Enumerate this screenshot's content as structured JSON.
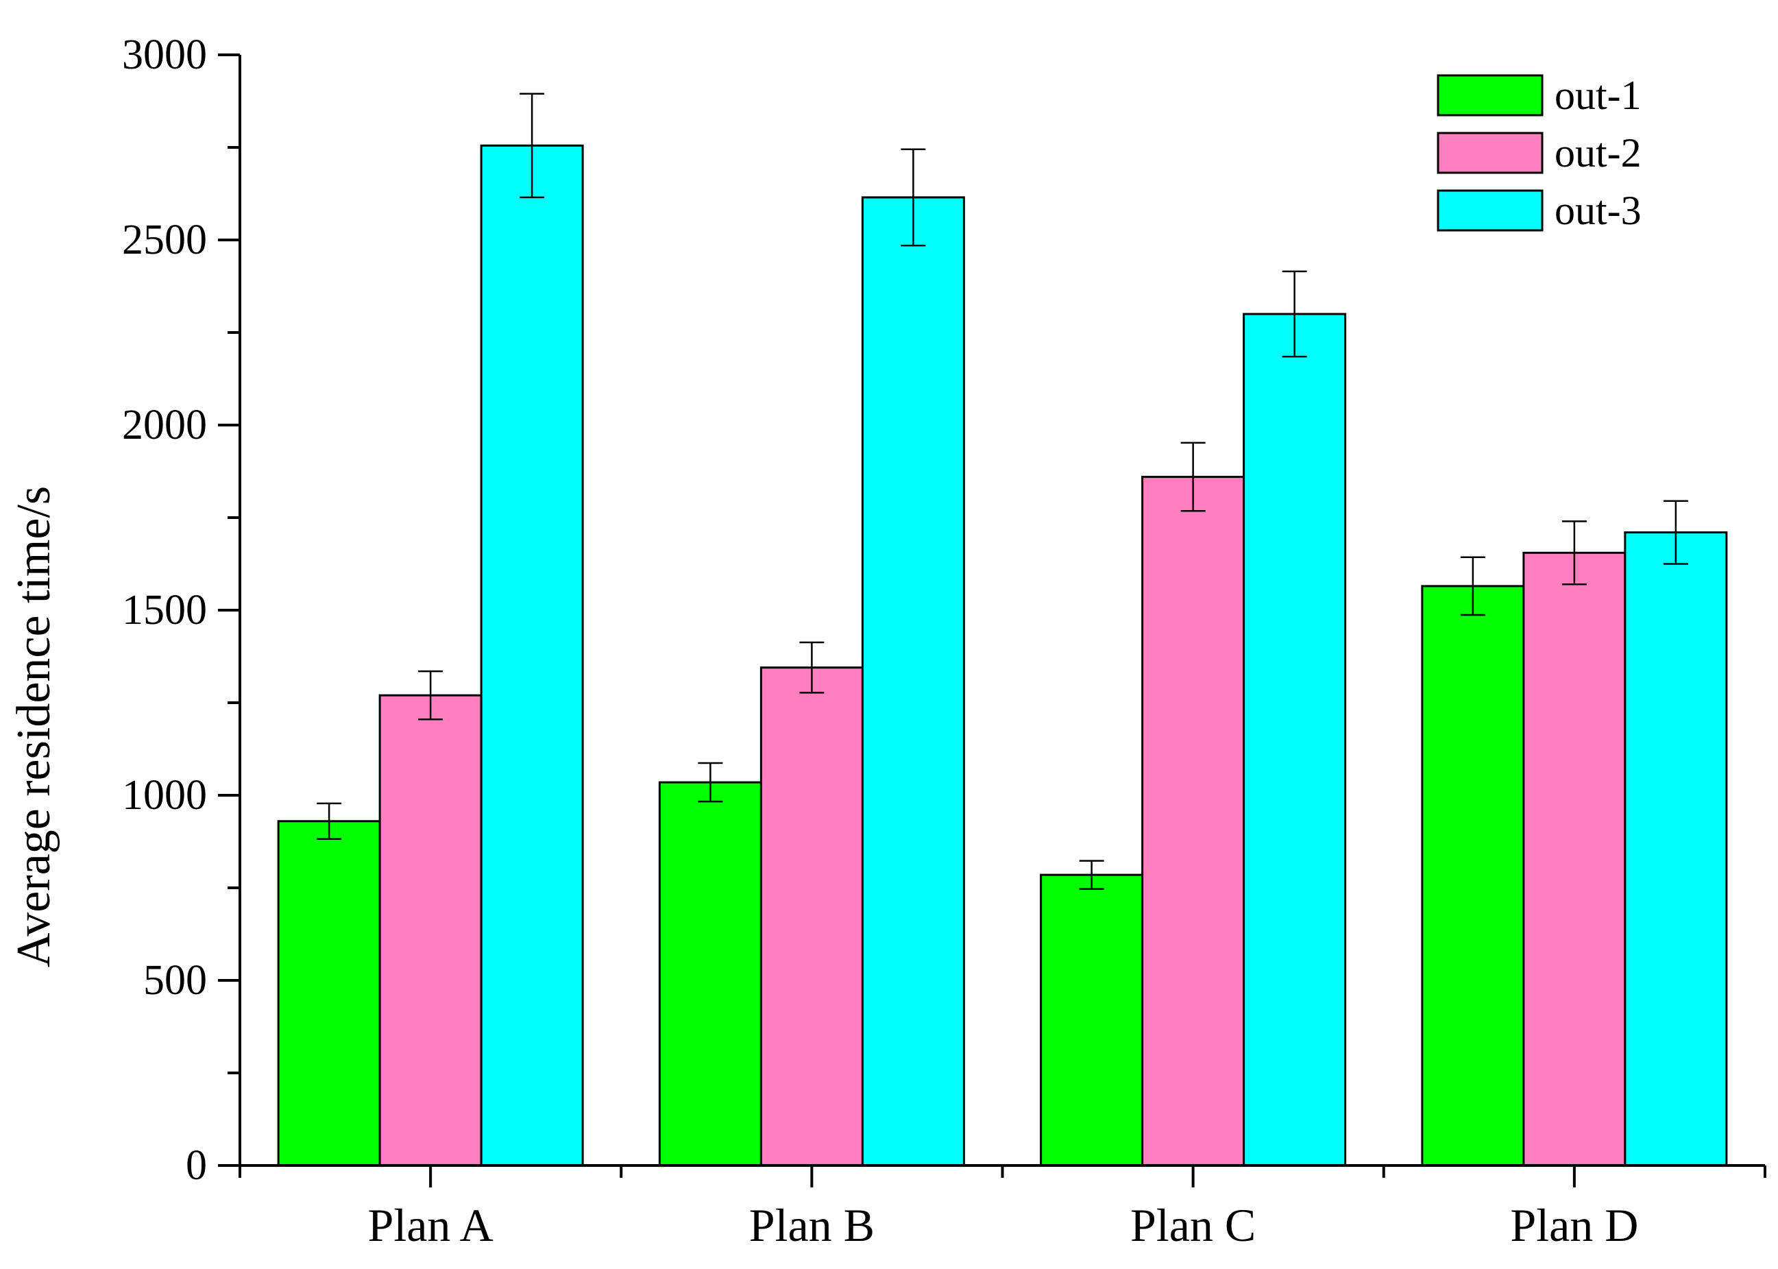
{
  "chart_data": {
    "type": "bar",
    "title": "",
    "xlabel": "",
    "ylabel": "Average residence time/s",
    "ylim": [
      0,
      3000
    ],
    "yticks": [
      0,
      500,
      1000,
      1500,
      2000,
      2500,
      3000
    ],
    "yticks_minor_step": 250,
    "categories": [
      "Plan A",
      "Plan B",
      "Plan C",
      "Plan D"
    ],
    "series": [
      {
        "name": "out-1",
        "color": "#00ff00",
        "values": [
          930,
          1035,
          785,
          1565
        ],
        "errors": [
          48,
          52,
          38,
          78
        ]
      },
      {
        "name": "out-2",
        "color": "#ff80c0",
        "values": [
          1270,
          1345,
          1860,
          1655
        ],
        "errors": [
          65,
          68,
          92,
          85
        ]
      },
      {
        "name": "out-3",
        "color": "#00ffff",
        "values": [
          2755,
          2615,
          2300,
          1710
        ],
        "errors": [
          140,
          130,
          115,
          85
        ]
      }
    ],
    "legend_position": "top-right",
    "grid": false
  }
}
